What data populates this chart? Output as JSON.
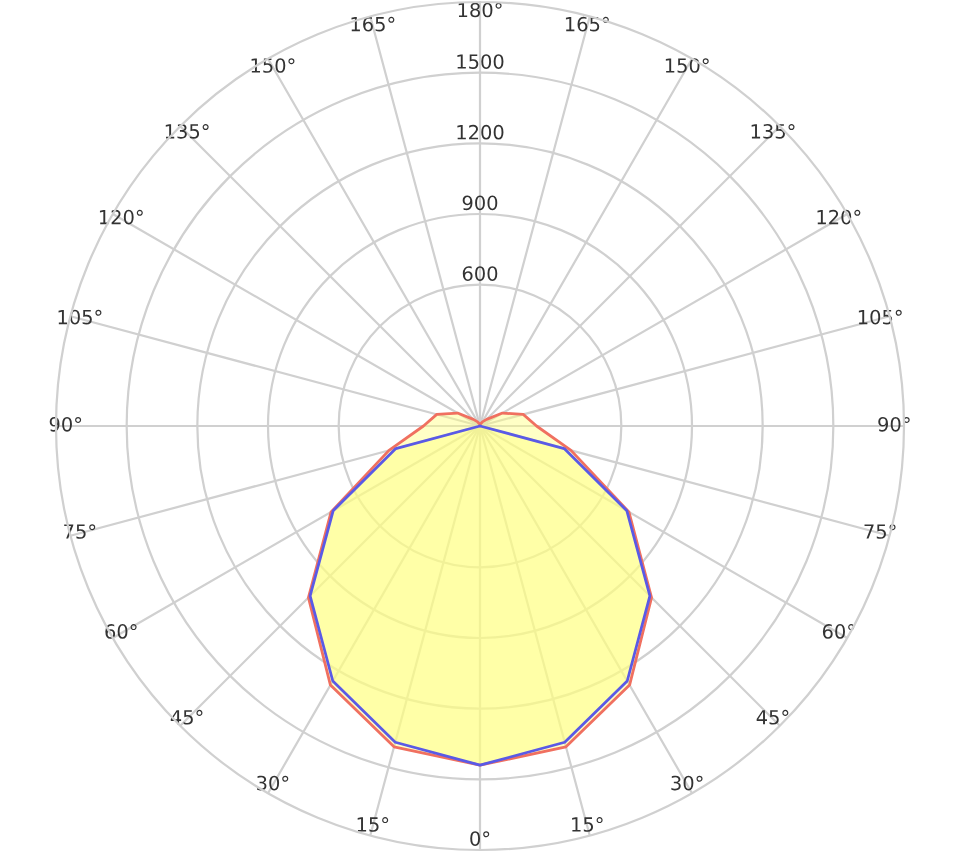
{
  "chart_data": {
    "type": "radar",
    "categories": [
      "180°",
      "165°",
      "150°",
      "135°",
      "120°",
      "105°",
      "90°",
      "75°",
      "60°",
      "45°",
      "30°",
      "15°",
      "0°",
      "15°",
      "30°",
      "45°",
      "60°",
      "75°",
      "90°",
      "105°",
      "120°",
      "135°",
      "150°",
      "165°"
    ],
    "series": [
      {
        "color": "#f07060",
        "values": [
          0,
          10,
          20,
          40,
          110,
          190,
          240,
          400,
          730,
          1030,
          1270,
          1410,
          1440,
          1410,
          1270,
          1030,
          730,
          400,
          240,
          190,
          110,
          40,
          20,
          10
        ]
      },
      {
        "color": "#5a5ae6",
        "values": [
          0,
          0,
          0,
          0,
          0,
          0,
          0,
          370,
          720,
          1020,
          1250,
          1390,
          1440,
          1390,
          1250,
          1020,
          720,
          370,
          0,
          0,
          0,
          0,
          0,
          0
        ]
      }
    ],
    "ylim": [
      0,
      1800
    ],
    "yticks": [
      600,
      900,
      1200,
      1500
    ],
    "grid": true
  }
}
